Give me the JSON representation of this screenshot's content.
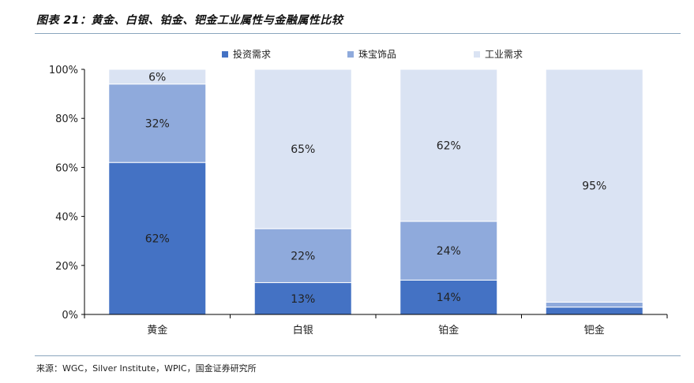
{
  "figure": {
    "title": "图表 21：黄金、白银、铂金、钯金工业属性与金融属性比较",
    "source": "来源：WGC，Silver Institute，WPIC，国金证券研究所"
  },
  "chart_data": {
    "type": "bar",
    "stacked": true,
    "percent_stacked": true,
    "categories": [
      "黄金",
      "白银",
      "铂金",
      "钯金"
    ],
    "series": [
      {
        "name": "投资需求",
        "color": "#4472c4",
        "values": [
          62,
          13,
          14,
          3
        ],
        "labels": [
          "62%",
          "13%",
          "14%",
          ""
        ]
      },
      {
        "name": "珠宝饰品",
        "color": "#8faadc",
        "values": [
          32,
          22,
          24,
          2
        ],
        "labels": [
          "32%",
          "22%",
          "24%",
          ""
        ]
      },
      {
        "name": "工业需求",
        "color": "#dae3f3",
        "values": [
          6,
          65,
          62,
          95
        ],
        "labels": [
          "6%",
          "65%",
          "62%",
          "95%"
        ]
      }
    ],
    "ylim": [
      0,
      100
    ],
    "yticks": [
      0,
      20,
      40,
      60,
      80,
      100
    ],
    "ytick_labels": [
      "0%",
      "20%",
      "40%",
      "60%",
      "80%",
      "100%"
    ],
    "legend_position": "top",
    "grid": false
  }
}
